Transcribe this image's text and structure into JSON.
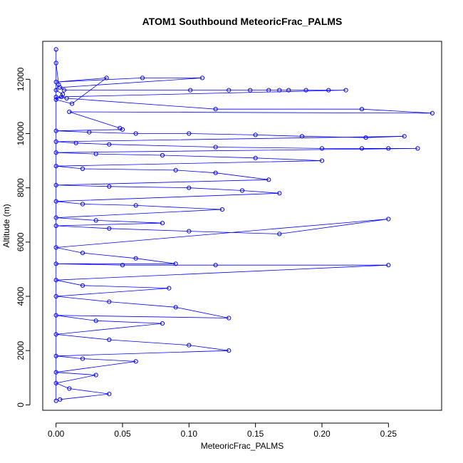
{
  "chart_data": {
    "type": "line",
    "title": "ATOM1 Southbound MeteoricFrac_PALMS",
    "xlabel": "MeteoricFrac_PALMS",
    "ylabel": "Altitude (m)",
    "xlim": [
      -0.01,
      0.29
    ],
    "ylim": [
      -200,
      13400
    ],
    "xticks": [
      0,
      0.05,
      0.1,
      0.15,
      0.2,
      0.25
    ],
    "xtick_labels": [
      "0.00",
      "0.05",
      "0.10",
      "0.15",
      "0.20",
      "0.25"
    ],
    "yticks": [
      0,
      2000,
      4000,
      6000,
      8000,
      10000,
      12000
    ],
    "ytick_labels": [
      "0",
      "2000",
      "4000",
      "6000",
      "8000",
      "10000",
      "12000"
    ],
    "marker": "open-circle",
    "grid": false,
    "legend": "none",
    "series": [
      {
        "x": [
          0.0,
          0.0,
          0.0,
          0.002,
          0.0,
          0.005,
          0.004,
          0.0,
          0.012,
          0.038,
          0.0,
          0.065,
          0.11,
          0.003,
          0.006,
          0.101,
          0.13,
          0.146,
          0.16,
          0.168,
          0.175,
          0.188,
          0.205,
          0.218,
          0.0,
          0.008,
          0.12,
          0.23,
          0.283,
          0.01,
          0.048,
          0.05,
          0.0,
          0.025,
          0.06,
          0.1,
          0.15,
          0.185,
          0.233,
          0.262,
          0.0,
          0.015,
          0.04,
          0.12,
          0.2,
          0.23,
          0.25,
          0.272,
          0.0,
          0.03,
          0.08,
          0.15,
          0.2,
          0.0,
          0.02,
          0.09,
          0.12,
          0.16,
          0.0,
          0.04,
          0.1,
          0.14,
          0.168,
          0.0,
          0.02,
          0.06,
          0.125,
          0.0,
          0.03,
          0.08,
          0.0,
          0.04,
          0.1,
          0.168,
          0.25,
          0.0,
          0.02,
          0.06,
          0.09,
          0.0,
          0.05,
          0.12,
          0.25,
          0.0,
          0.02,
          0.085,
          0.0,
          0.04,
          0.09,
          0.13,
          0.0,
          0.03,
          0.08,
          0.0,
          0.04,
          0.1,
          0.13,
          0.0,
          0.02,
          0.06,
          0.0,
          0.03,
          0.0,
          0.01,
          0.04,
          0.003
        ],
        "y": [
          150,
          13100,
          12600,
          11800,
          11600,
          11450,
          11350,
          11250,
          11100,
          12050,
          11900,
          12050,
          12050,
          11700,
          11600,
          11600,
          11600,
          11600,
          11600,
          11600,
          11600,
          11600,
          11600,
          11600,
          11350,
          11300,
          10900,
          10900,
          10750,
          10800,
          10200,
          10150,
          10100,
          10050,
          10000,
          10000,
          9950,
          9900,
          9850,
          9900,
          9700,
          9650,
          9600,
          9500,
          9450,
          9450,
          9450,
          9450,
          9300,
          9250,
          9200,
          9100,
          9000,
          8800,
          8700,
          8650,
          8550,
          8300,
          8100,
          8050,
          8000,
          7900,
          7800,
          7500,
          7400,
          7350,
          7200,
          6900,
          6800,
          6700,
          6600,
          6500,
          6400,
          6300,
          6850,
          5800,
          5600,
          5400,
          5200,
          5200,
          5150,
          5150,
          5150,
          4600,
          4400,
          4300,
          4000,
          3800,
          3600,
          3200,
          3300,
          3100,
          3000,
          2600,
          2400,
          2200,
          2000,
          1800,
          1700,
          1600,
          1200,
          1100,
          800,
          600,
          400,
          200
        ]
      }
    ]
  }
}
